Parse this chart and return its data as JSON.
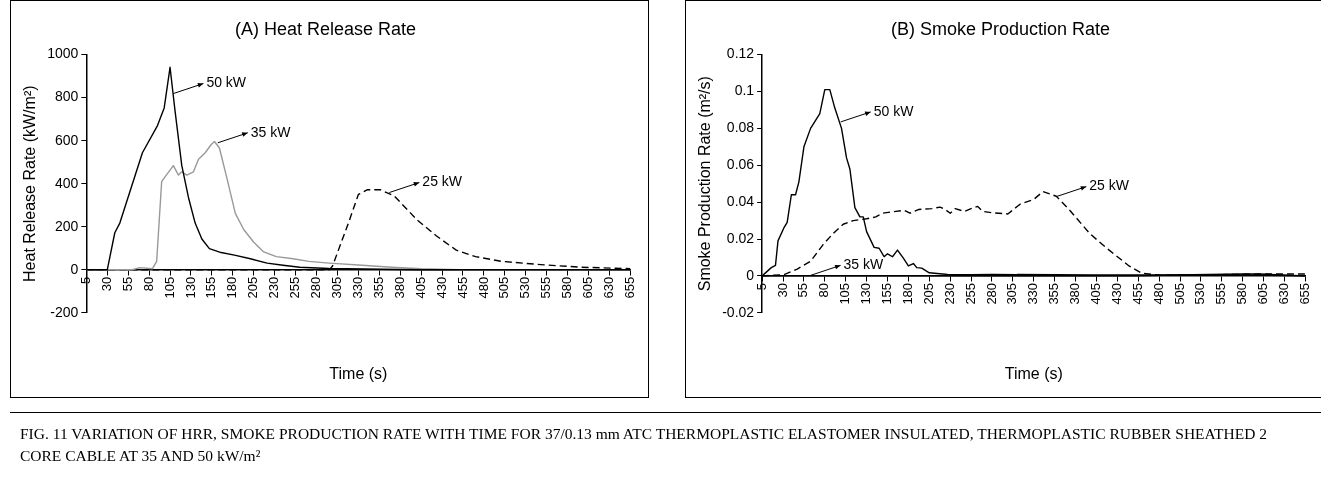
{
  "chart_data": [
    {
      "type": "line",
      "title": "(A) Heat Release Rate",
      "xlabel": "Time (s)",
      "ylabel": "Heat Release Rate (kW/m²)",
      "xlim": [
        5,
        655
      ],
      "xticks": [
        5,
        30,
        55,
        80,
        105,
        130,
        155,
        180,
        205,
        230,
        255,
        280,
        305,
        330,
        355,
        380,
        405,
        430,
        455,
        480,
        505,
        530,
        555,
        580,
        605,
        630,
        655
      ],
      "ylim": [
        -200,
        1000
      ],
      "yticks": [
        -200,
        0,
        200,
        400,
        600,
        800,
        1000
      ],
      "grid": false,
      "legend": false,
      "marker": "none",
      "series": [
        {
          "color": "#000000",
          "line_style": "solid",
          "x": [
            5,
            30,
            39,
            45,
            72,
            90,
            98,
            105,
            111,
            119,
            127,
            135,
            143,
            152,
            166,
            182,
            201,
            221,
            240,
            260,
            295,
            400,
            655
          ],
          "values": [
            0,
            0,
            172,
            217,
            544,
            670,
            752,
            941,
            737,
            485,
            336,
            217,
            143,
            98,
            80,
            68,
            51,
            31,
            21,
            12,
            6,
            0,
            0
          ]
        },
        {
          "color": "#999999",
          "line_style": "solid",
          "x": [
            5,
            60,
            69,
            84,
            89,
            95,
            99,
            109,
            115,
            119,
            125,
            133,
            139,
            147,
            154,
            158,
            164,
            173,
            183,
            193,
            205,
            217,
            232,
            252,
            271,
            295,
            330,
            370,
            405,
            450,
            655
          ],
          "values": [
            0,
            0,
            10,
            5,
            39,
            410,
            432,
            484,
            440,
            455,
            440,
            455,
            514,
            544,
            581,
            596,
            566,
            425,
            262,
            187,
            128,
            83,
            61,
            51,
            39,
            31,
            22,
            12,
            5,
            0,
            0
          ]
        },
        {
          "color": "#000000",
          "line_style": "dashed",
          "x": [
            5,
            295,
            299,
            318,
            330,
            341,
            356,
            373,
            400,
            423,
            447,
            470,
            501,
            548,
            595,
            655
          ],
          "values": [
            0,
            0,
            16,
            216,
            350,
            372,
            372,
            343,
            232,
            158,
            91,
            61,
            39,
            24,
            12,
            5
          ]
        }
      ],
      "annotations": [
        {
          "text": "50 kW",
          "x": 109,
          "y": 819
        },
        {
          "text": "35 kW",
          "x": 162,
          "y": 590
        },
        {
          "text": "25 kW",
          "x": 367,
          "y": 359
        }
      ]
    },
    {
      "type": "line",
      "title": "(B) Smoke Production Rate",
      "xlabel": "Time (s)",
      "ylabel": "Smoke Production Rate (m²/s)",
      "xlim": [
        5,
        655
      ],
      "xticks": [
        5,
        30,
        55,
        80,
        105,
        130,
        155,
        180,
        205,
        230,
        255,
        280,
        305,
        330,
        355,
        380,
        405,
        430,
        455,
        480,
        505,
        530,
        555,
        580,
        605,
        630,
        655
      ],
      "ylim": [
        -0.02,
        0.12
      ],
      "yticks": [
        -0.02,
        0,
        0.02,
        0.04,
        0.06,
        0.08,
        0.1,
        0.12
      ],
      "grid": false,
      "legend": false,
      "marker": "none",
      "series": [
        {
          "color": "#000000",
          "line_style": "solid",
          "x": [
            5,
            16,
            21,
            24,
            31,
            35,
            40,
            45,
            49,
            55,
            63,
            74,
            80,
            86,
            92,
            100,
            106,
            110,
            116,
            122,
            126,
            130,
            139,
            145,
            151,
            155,
            161,
            167,
            174,
            180,
            186,
            190,
            196,
            205,
            227,
            254,
            281,
            400,
            600,
            655
          ],
          "values": [
            0,
            0.0045,
            0.0057,
            0.019,
            0.026,
            0.029,
            0.044,
            0.044,
            0.051,
            0.07,
            0.08,
            0.088,
            0.101,
            0.101,
            0.091,
            0.08,
            0.064,
            0.058,
            0.037,
            0.032,
            0.032,
            0.024,
            0.0155,
            0.015,
            0.0104,
            0.012,
            0.0104,
            0.014,
            0.0096,
            0.0054,
            0.0067,
            0.0045,
            0.0042,
            0.0017,
            0.0008,
            0.0007,
            0.0008,
            0.0005,
            0.0005,
            0
          ]
        },
        {
          "color": "#000000",
          "line_style": "solid",
          "x": [
            5,
            450,
            500,
            580,
            600,
            655
          ],
          "values": [
            0,
            0,
            0.0005,
            0.001,
            0.001,
            0
          ]
        },
        {
          "color": "#000000",
          "line_style": "dashed",
          "x": [
            5,
            31,
            47,
            63,
            78,
            90,
            102,
            114,
            130,
            141,
            149,
            165,
            175,
            182,
            192,
            208,
            218,
            224,
            230,
            236,
            247,
            255,
            263,
            269,
            279,
            299,
            314,
            330,
            341,
            357,
            373,
            397,
            416,
            444,
            459,
            483,
            600,
            655
          ],
          "values": [
            0,
            0.0007,
            0.0037,
            0.0079,
            0.017,
            0.023,
            0.028,
            0.03,
            0.031,
            0.032,
            0.034,
            0.035,
            0.0356,
            0.034,
            0.036,
            0.0365,
            0.0373,
            0.036,
            0.034,
            0.0365,
            0.035,
            0.0365,
            0.0377,
            0.035,
            0.0343,
            0.0336,
            0.039,
            0.0415,
            0.0457,
            0.0432,
            0.0356,
            0.023,
            0.0155,
            0.0054,
            0.0015,
            0.0003,
            0.001,
            0.001
          ]
        }
      ],
      "annotations": [
        {
          "text": "50 kW",
          "x": 99,
          "y": 0.0835
        },
        {
          "text": "35 kW",
          "x": 63,
          "y": 0.0003
        },
        {
          "text": "25 kW",
          "x": 357,
          "y": 0.043
        },
        "FIG. 11  VARIATION OF HRR, SMOKE PRODUCTION RATE WITH TIME FOR 37/0.13 mm ATC THERMOPLASTIC ELASTOMER INSULATED, THERMOPLASTIC RUBBER SHEATHED 2 CORE CABLE AT 35 AND 50 kW/m²"
      ]
    }
  ]
}
